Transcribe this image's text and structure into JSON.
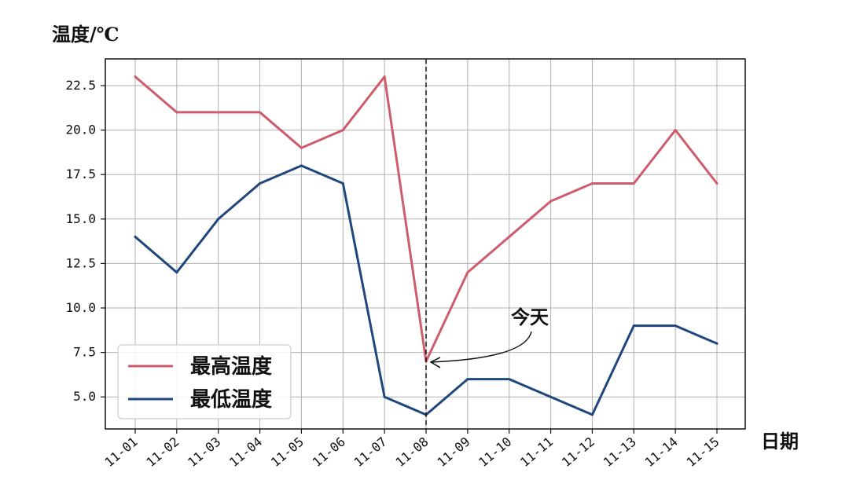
{
  "colors": {
    "high": "#cd5c6c",
    "low": "#1f477c",
    "grid": "#b0b0b0",
    "frame": "#111111"
  },
  "chart_data": {
    "type": "line",
    "ylabel": "温度/℃",
    "xlabel": "日期",
    "categories": [
      "11-01",
      "11-02",
      "11-03",
      "11-04",
      "11-05",
      "11-06",
      "11-07",
      "11-08",
      "11-09",
      "11-10",
      "11-11",
      "11-12",
      "11-13",
      "11-14",
      "11-15"
    ],
    "series": [
      {
        "name": "最高温度",
        "color": "#cd5c6c",
        "values": [
          23,
          21,
          21,
          21,
          19,
          20,
          23,
          7,
          12,
          14,
          16,
          17,
          17,
          20,
          17
        ]
      },
      {
        "name": "最低温度",
        "color": "#1f477c",
        "values": [
          14,
          12,
          15,
          17,
          18,
          17,
          5,
          4,
          6,
          6,
          5,
          4,
          9,
          9,
          8
        ]
      }
    ],
    "ylim": [
      3.2,
      24.0
    ],
    "yticks": [
      5.0,
      7.5,
      10.0,
      12.5,
      15.0,
      17.5,
      20.0,
      22.5
    ],
    "ytick_labels": [
      "5.0",
      "7.5",
      "10.0",
      "12.5",
      "15.0",
      "17.5",
      "20.0",
      "22.5"
    ],
    "grid": true,
    "legend_position": "lower-left",
    "today_marker": {
      "category": "11-08",
      "style": "dashed-vertical"
    },
    "annotation": {
      "text": "今天",
      "target_category": "11-08",
      "target_series": "最高温度",
      "arrow": true
    }
  }
}
